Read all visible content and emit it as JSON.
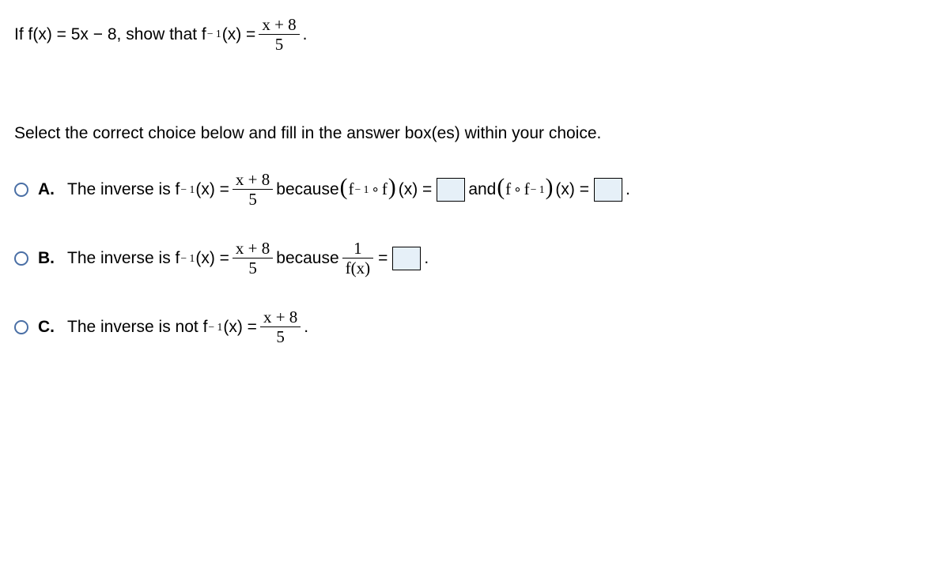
{
  "stem": {
    "p1": "If f(x) = 5x − 8, show that f",
    "p2": "(x) =",
    "frac_num": "x + 8",
    "frac_den": "5",
    "p3": "."
  },
  "instruction": "Select the correct choice below and fill in the answer box(es) within your choice.",
  "choices": {
    "a": {
      "letter": "A.",
      "t1": "The inverse is f",
      "t2": "(x) =",
      "num": "x + 8",
      "den": "5",
      "t3": " because ",
      "t4": "f",
      "t5": "f",
      "t6": "(x) =",
      "t7": " and ",
      "t8": "f",
      "t9": "f",
      "t10": "(x) =",
      "t11": "."
    },
    "b": {
      "letter": "B.",
      "t1": "The inverse is f",
      "t2": "(x) =",
      "num": "x + 8",
      "den": "5",
      "t3": " because ",
      "rnum": "1",
      "rden": "f(x)",
      "t4": " =",
      "t5": "."
    },
    "c": {
      "letter": "C.",
      "t1": "The inverse is not f",
      "t2": "(x) =",
      "num": "x + 8",
      "den": "5",
      "t3": "."
    }
  },
  "exp_neg1": "− 1",
  "circ": "∘"
}
